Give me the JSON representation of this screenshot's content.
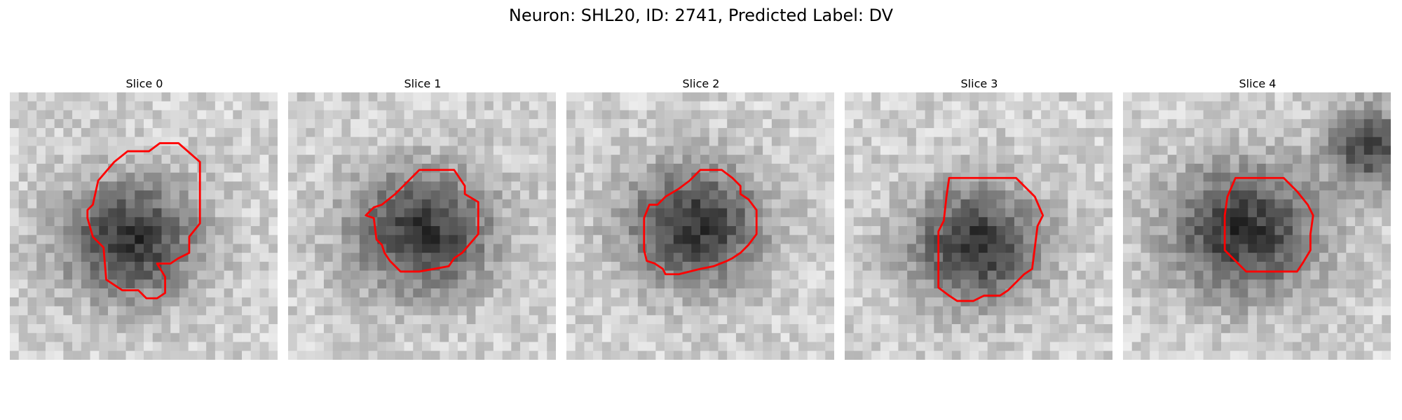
{
  "figure": {
    "title": "Neuron: SHL20, ID: 2741, Predicted Label: DV",
    "contour_color": "#ff0000",
    "colormap": "gray",
    "slices": [
      {
        "title": "Slice 0",
        "blob_center": [
          0.45,
          0.55
        ],
        "blob_radius": 0.32,
        "extra_dark": null,
        "contour": [
          [
            0.56,
            0.19
          ],
          [
            0.63,
            0.19
          ],
          [
            0.71,
            0.26
          ],
          [
            0.71,
            0.49
          ],
          [
            0.67,
            0.54
          ],
          [
            0.67,
            0.6
          ],
          [
            0.63,
            0.62
          ],
          [
            0.6,
            0.64
          ],
          [
            0.55,
            0.64
          ],
          [
            0.58,
            0.69
          ],
          [
            0.58,
            0.75
          ],
          [
            0.55,
            0.77
          ],
          [
            0.51,
            0.77
          ],
          [
            0.48,
            0.74
          ],
          [
            0.42,
            0.74
          ],
          [
            0.36,
            0.7
          ],
          [
            0.35,
            0.58
          ],
          [
            0.31,
            0.54
          ],
          [
            0.29,
            0.47
          ],
          [
            0.29,
            0.44
          ],
          [
            0.31,
            0.42
          ],
          [
            0.33,
            0.33
          ],
          [
            0.39,
            0.26
          ],
          [
            0.44,
            0.22
          ],
          [
            0.52,
            0.22
          ]
        ]
      },
      {
        "title": "Slice 1",
        "blob_center": [
          0.5,
          0.52
        ],
        "blob_radius": 0.33,
        "extra_dark": null,
        "contour": [
          [
            0.49,
            0.29
          ],
          [
            0.62,
            0.29
          ],
          [
            0.66,
            0.35
          ],
          [
            0.66,
            0.38
          ],
          [
            0.71,
            0.41
          ],
          [
            0.71,
            0.53
          ],
          [
            0.65,
            0.6
          ],
          [
            0.62,
            0.62
          ],
          [
            0.6,
            0.65
          ],
          [
            0.49,
            0.67
          ],
          [
            0.42,
            0.67
          ],
          [
            0.38,
            0.63
          ],
          [
            0.36,
            0.6
          ],
          [
            0.35,
            0.57
          ],
          [
            0.33,
            0.55
          ],
          [
            0.32,
            0.47
          ],
          [
            0.29,
            0.46
          ],
          [
            0.32,
            0.43
          ],
          [
            0.35,
            0.42
          ],
          [
            0.4,
            0.38
          ],
          [
            0.45,
            0.33
          ]
        ]
      },
      {
        "title": "Slice 2",
        "blob_center": [
          0.48,
          0.5
        ],
        "blob_radius": 0.32,
        "extra_dark": null,
        "contour": [
          [
            0.5,
            0.29
          ],
          [
            0.58,
            0.29
          ],
          [
            0.62,
            0.32
          ],
          [
            0.65,
            0.35
          ],
          [
            0.65,
            0.38
          ],
          [
            0.68,
            0.4
          ],
          [
            0.71,
            0.44
          ],
          [
            0.71,
            0.53
          ],
          [
            0.68,
            0.57
          ],
          [
            0.65,
            0.6
          ],
          [
            0.62,
            0.62
          ],
          [
            0.6,
            0.63
          ],
          [
            0.55,
            0.65
          ],
          [
            0.5,
            0.66
          ],
          [
            0.42,
            0.68
          ],
          [
            0.37,
            0.68
          ],
          [
            0.36,
            0.66
          ],
          [
            0.33,
            0.64
          ],
          [
            0.3,
            0.63
          ],
          [
            0.29,
            0.59
          ],
          [
            0.29,
            0.47
          ],
          [
            0.31,
            0.42
          ],
          [
            0.34,
            0.42
          ],
          [
            0.37,
            0.39
          ],
          [
            0.42,
            0.36
          ],
          [
            0.46,
            0.33
          ]
        ]
      },
      {
        "title": "Slice 3",
        "blob_center": [
          0.49,
          0.57
        ],
        "blob_radius": 0.31,
        "extra_dark": null,
        "contour": [
          [
            0.39,
            0.32
          ],
          [
            0.64,
            0.32
          ],
          [
            0.71,
            0.39
          ],
          [
            0.74,
            0.46
          ],
          [
            0.72,
            0.5
          ],
          [
            0.71,
            0.58
          ],
          [
            0.7,
            0.66
          ],
          [
            0.67,
            0.68
          ],
          [
            0.64,
            0.71
          ],
          [
            0.61,
            0.74
          ],
          [
            0.58,
            0.76
          ],
          [
            0.52,
            0.76
          ],
          [
            0.48,
            0.78
          ],
          [
            0.42,
            0.78
          ],
          [
            0.39,
            0.76
          ],
          [
            0.35,
            0.73
          ],
          [
            0.35,
            0.66
          ],
          [
            0.35,
            0.52
          ],
          [
            0.37,
            0.48
          ],
          [
            0.38,
            0.39
          ]
        ]
      },
      {
        "title": "Slice 4",
        "blob_center": [
          0.45,
          0.52
        ],
        "blob_radius": 0.35,
        "extra_dark": [
          0.92,
          0.2,
          0.18
        ],
        "contour": [
          [
            0.42,
            0.32
          ],
          [
            0.6,
            0.32
          ],
          [
            0.65,
            0.37
          ],
          [
            0.69,
            0.42
          ],
          [
            0.71,
            0.46
          ],
          [
            0.7,
            0.53
          ],
          [
            0.7,
            0.59
          ],
          [
            0.67,
            0.64
          ],
          [
            0.65,
            0.67
          ],
          [
            0.59,
            0.67
          ],
          [
            0.54,
            0.67
          ],
          [
            0.46,
            0.67
          ],
          [
            0.42,
            0.63
          ],
          [
            0.38,
            0.59
          ],
          [
            0.38,
            0.46
          ],
          [
            0.39,
            0.39
          ]
        ]
      }
    ]
  }
}
